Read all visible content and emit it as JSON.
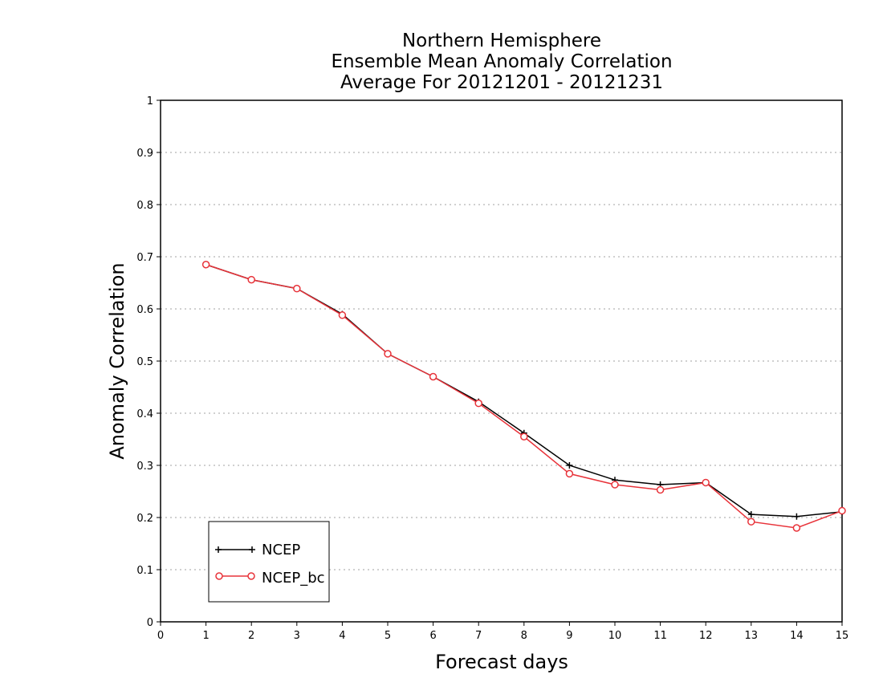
{
  "chart_data": {
    "type": "line",
    "title_lines": [
      "Northern Hemisphere",
      "Ensemble Mean Anomaly Correlation",
      "Average For 20121201 - 20121231"
    ],
    "xlabel": "Forecast days",
    "ylabel": "Anomaly Correlation",
    "xlim": [
      0,
      15
    ],
    "ylim": [
      0,
      1
    ],
    "x_ticks": [
      "0",
      "1",
      "2",
      "3",
      "4",
      "5",
      "6",
      "7",
      "8",
      "9",
      "10",
      "11",
      "12",
      "13",
      "14",
      "15"
    ],
    "y_ticks": [
      "0",
      "0.1",
      "0.2",
      "0.3",
      "0.4",
      "0.5",
      "0.6",
      "0.7",
      "0.8",
      "0.9",
      "1"
    ],
    "grid": "horizontal dotted",
    "legend_position": "bottom-left",
    "x": [
      1,
      2,
      3,
      4,
      5,
      6,
      7,
      8,
      9,
      10,
      11,
      12,
      13,
      14,
      15
    ],
    "series": [
      {
        "name": "NCEP",
        "color": "#000000",
        "marker": "plus",
        "values": [
          0.685,
          0.656,
          0.639,
          0.59,
          0.514,
          0.47,
          0.422,
          0.362,
          0.3,
          0.272,
          0.263,
          0.267,
          0.206,
          0.202,
          0.211
        ]
      },
      {
        "name": "NCEP_bc",
        "color": "#e8333a",
        "marker": "circle",
        "values": [
          0.685,
          0.656,
          0.639,
          0.588,
          0.514,
          0.47,
          0.419,
          0.355,
          0.284,
          0.263,
          0.253,
          0.267,
          0.192,
          0.18,
          0.213
        ]
      }
    ]
  }
}
